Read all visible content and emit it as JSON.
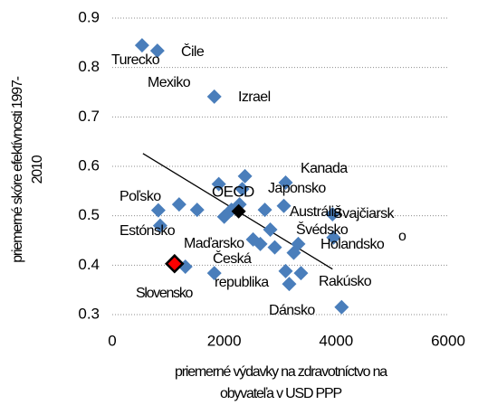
{
  "chart_data": {
    "type": "scatter",
    "xlabel": [
      "priemerné výdavky na zdravotníctvo na",
      "obyvateľa v USD PPP"
    ],
    "ylabel": [
      "priemerné skóre efektívnosti 1997-",
      "2010"
    ],
    "xlim": [
      0,
      6000
    ],
    "xticks": [
      0,
      2000,
      4000,
      6000
    ],
    "ylim": [
      0.3,
      0.9
    ],
    "yticks": [
      0.3,
      0.4,
      0.5,
      0.6,
      0.7,
      0.8,
      0.9
    ],
    "grid": true,
    "series": [
      {
        "color": "#4a7ebb",
        "x": [
          532,
          806,
          1823,
          2371,
          1903,
          823,
          1194,
          855,
          1306,
          1823,
          1516,
          2000,
          2129,
          2323,
          2274,
          2516,
          2645,
          2726,
          2823,
          2903,
          3097,
          3065,
          3323,
          3242,
          3097,
          3161,
          3371,
          4097,
          3935,
          3952
        ],
        "values": [
          0.845,
          0.834,
          0.741,
          0.58,
          0.564,
          0.511,
          0.523,
          0.48,
          0.397,
          0.384,
          0.512,
          0.498,
          0.512,
          0.554,
          0.523,
          0.452,
          0.443,
          0.512,
          0.472,
          0.436,
          0.567,
          0.52,
          0.443,
          0.425,
          0.388,
          0.362,
          0.384,
          0.315,
          0.503,
          0.456
        ]
      },
      {
        "color": "#ff0000",
        "x": [
          1113
        ],
        "values": [
          0.403
        ]
      },
      {
        "color": "#000000",
        "x": [
          2258
        ],
        "values": [
          0.509
        ]
      }
    ],
    "trendline": {
      "x": [
        548,
        3935
      ],
      "values": [
        0.626,
        0.392
      ],
      "color": "#000000"
    },
    "annotations": [
      "Turecko",
      "Čile",
      "Mexiko",
      "Izrael",
      "Kanada",
      "Japonsko",
      "OECD",
      "Austrália",
      "Švajčiarsk",
      "o",
      "Poľsko",
      "Estónsko",
      "Maďarsko",
      "Švédsko",
      "Holandsko",
      "Česká",
      "republika",
      "Slovensko",
      "Rakúsko",
      "Dánsko"
    ]
  }
}
